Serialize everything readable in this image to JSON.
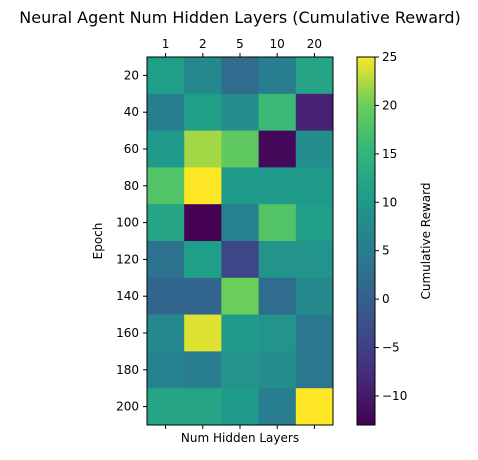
{
  "chart_data": {
    "type": "heatmap",
    "title": "Neural Agent Num Hidden Layers (Cumulative Reward)",
    "xlabel": "Num Hidden Layers",
    "ylabel": "Epoch",
    "x_categories": [
      "1",
      "2",
      "5",
      "10",
      "20"
    ],
    "y_categories": [
      "20",
      "40",
      "60",
      "80",
      "100",
      "120",
      "140",
      "160",
      "180",
      "200"
    ],
    "values": [
      [
        11,
        7,
        2,
        5,
        12
      ],
      [
        5,
        11,
        8,
        16,
        -9
      ],
      [
        10,
        22,
        19,
        -12,
        8
      ],
      [
        18,
        25,
        10,
        10,
        10
      ],
      [
        12,
        -13,
        6,
        18,
        11
      ],
      [
        3,
        11,
        -4,
        9,
        9
      ],
      [
        1,
        1,
        20,
        2,
        7
      ],
      [
        7,
        24,
        10,
        9,
        4
      ],
      [
        6,
        5,
        9,
        8,
        4
      ],
      [
        12,
        12,
        10,
        5,
        25
      ]
    ],
    "colorbar": {
      "label": "Cumulative Reward",
      "vmin": -13,
      "vmax": 25,
      "ticks": [
        "25",
        "20",
        "15",
        "10",
        "5",
        "0",
        "−5",
        "−10"
      ],
      "tick_values": [
        25,
        20,
        15,
        10,
        5,
        0,
        -5,
        -10
      ]
    },
    "colormap": "viridis",
    "x_ticks_position": "top"
  }
}
